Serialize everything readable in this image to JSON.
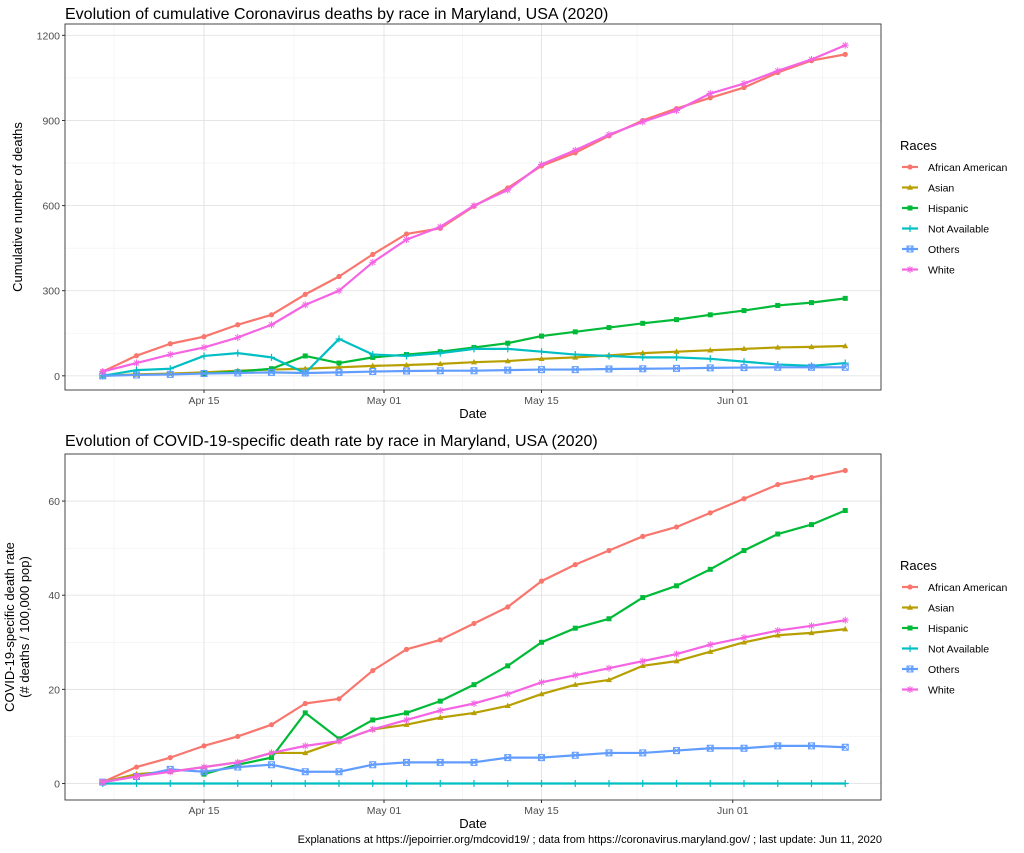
{
  "colors": {
    "African American": "#F8766D",
    "Asian": "#B79F00",
    "Hispanic": "#00BA38",
    "Not Available": "#00BFC4",
    "Others": "#619CFF",
    "White": "#F564E3"
  },
  "markers": {
    "African American": "circle",
    "Asian": "triangle",
    "Hispanic": "square",
    "Not Available": "plus",
    "Others": "boxed-cross",
    "White": "asterisk"
  },
  "caption": "Explanations at https://jepoirrier.org/mdcovid19/ ; data from https://coronavirus.maryland.gov/ ; last update: Jun 11, 2020",
  "chart_data": [
    {
      "type": "line",
      "title": "Evolution of cumulative Coronavirus deaths by race in Maryland, USA (2020)",
      "xlabel": "Date",
      "ylabel": "Cumulative number of deaths",
      "ylim": [
        -50,
        1240
      ],
      "yticks": [
        0,
        300,
        600,
        900,
        1200
      ],
      "xticks": [
        "Apr 15",
        "May 01",
        "May 15",
        "Jun 01"
      ],
      "grid": true,
      "legend_title": "Races",
      "legend_position": "right",
      "x": [
        "2020-04-06",
        "2020-04-09",
        "2020-04-12",
        "2020-04-15",
        "2020-04-18",
        "2020-04-21",
        "2020-04-24",
        "2020-04-27",
        "2020-04-30",
        "2020-05-03",
        "2020-05-06",
        "2020-05-09",
        "2020-05-12",
        "2020-05-15",
        "2020-05-18",
        "2020-05-21",
        "2020-05-24",
        "2020-05-27",
        "2020-05-30",
        "2020-06-02",
        "2020-06-05",
        "2020-06-08",
        "2020-06-11"
      ],
      "series": [
        {
          "name": "African American",
          "values": [
            15,
            71,
            113,
            138,
            180,
            215,
            287,
            350,
            428,
            500,
            520,
            598,
            662,
            740,
            786,
            846,
            900,
            942,
            980,
            1016,
            1069,
            1111,
            1133
          ]
        },
        {
          "name": "Asian",
          "values": [
            0,
            5,
            8,
            12,
            18,
            22,
            25,
            30,
            35,
            38,
            42,
            48,
            52,
            60,
            65,
            72,
            80,
            85,
            90,
            95,
            100,
            102,
            105
          ]
        },
        {
          "name": "Hispanic",
          "values": [
            null,
            null,
            null,
            8,
            15,
            25,
            70,
            45,
            65,
            75,
            85,
            100,
            115,
            140,
            155,
            170,
            185,
            198,
            215,
            230,
            248,
            258,
            273
          ]
        },
        {
          "name": "Not Available",
          "values": [
            0,
            20,
            25,
            70,
            80,
            65,
            10,
            130,
            75,
            70,
            80,
            95,
            95,
            85,
            75,
            70,
            65,
            65,
            60,
            50,
            40,
            35,
            45
          ]
        },
        {
          "name": "Others",
          "values": [
            0,
            3,
            5,
            8,
            10,
            12,
            10,
            12,
            15,
            17,
            18,
            18,
            20,
            22,
            22,
            24,
            25,
            26,
            28,
            29,
            30,
            30,
            30
          ]
        },
        {
          "name": "White",
          "values": [
            15,
            45,
            75,
            100,
            135,
            180,
            250,
            300,
            400,
            480,
            525,
            600,
            655,
            745,
            795,
            850,
            895,
            935,
            995,
            1030,
            1075,
            1115,
            1165
          ]
        }
      ]
    },
    {
      "type": "line",
      "title": "Evolution of COVID-19-specific death rate by race in Maryland, USA (2020)",
      "xlabel": "Date",
      "ylabel": "COVID-19-specific death rate",
      "ylabel2": "(# deaths / 100,000 pop)",
      "ylim": [
        -3.5,
        70
      ],
      "yticks": [
        0,
        20,
        40,
        60
      ],
      "xticks": [
        "Apr 15",
        "May 01",
        "May 15",
        "Jun 01"
      ],
      "grid": true,
      "legend_title": "Races",
      "legend_position": "right",
      "x": [
        "2020-04-06",
        "2020-04-09",
        "2020-04-12",
        "2020-04-15",
        "2020-04-18",
        "2020-04-21",
        "2020-04-24",
        "2020-04-27",
        "2020-04-30",
        "2020-05-03",
        "2020-05-06",
        "2020-05-09",
        "2020-05-12",
        "2020-05-15",
        "2020-05-18",
        "2020-05-21",
        "2020-05-24",
        "2020-05-27",
        "2020-05-30",
        "2020-06-02",
        "2020-06-05",
        "2020-06-08",
        "2020-06-11"
      ],
      "series": [
        {
          "name": "African American",
          "values": [
            0.3,
            3.5,
            5.5,
            8,
            10,
            12.5,
            17,
            18,
            24,
            28.5,
            30.5,
            34,
            37.5,
            43,
            46.5,
            49.5,
            52.5,
            54.5,
            57.5,
            60.5,
            63.5,
            65,
            66.5
          ]
        },
        {
          "name": "Asian",
          "values": [
            0.3,
            2,
            2.5,
            3.5,
            4.5,
            6.5,
            6.5,
            9,
            11.5,
            12.5,
            14,
            15,
            16.5,
            19,
            21,
            22,
            25,
            26,
            28,
            30,
            31.5,
            32,
            32.8
          ]
        },
        {
          "name": "Hispanic",
          "values": [
            null,
            null,
            null,
            2,
            4,
            5.5,
            15,
            9.5,
            13.5,
            15,
            17.5,
            21,
            25,
            30,
            33,
            35,
            39.5,
            42,
            45.5,
            49.5,
            53,
            55,
            58
          ]
        },
        {
          "name": "Not Available",
          "values": [
            0,
            0,
            0,
            0,
            0,
            0,
            0,
            0,
            0,
            0,
            0,
            0,
            0,
            0,
            0,
            0,
            0,
            0,
            0,
            0,
            0,
            0,
            0
          ]
        },
        {
          "name": "Others",
          "values": [
            0.3,
            1.5,
            3,
            2.5,
            3.5,
            4,
            2.5,
            2.5,
            4,
            4.5,
            4.5,
            4.5,
            5.5,
            5.5,
            6,
            6.5,
            6.5,
            7,
            7.5,
            7.5,
            8,
            8,
            7.7
          ]
        },
        {
          "name": "White",
          "values": [
            0.3,
            1.5,
            2.5,
            3.5,
            4.5,
            6.5,
            8,
            9,
            11.5,
            13.5,
            15.5,
            17,
            19,
            21.5,
            23,
            24.5,
            26,
            27.5,
            29.5,
            31,
            32.5,
            33.5,
            34.7
          ]
        }
      ]
    }
  ]
}
